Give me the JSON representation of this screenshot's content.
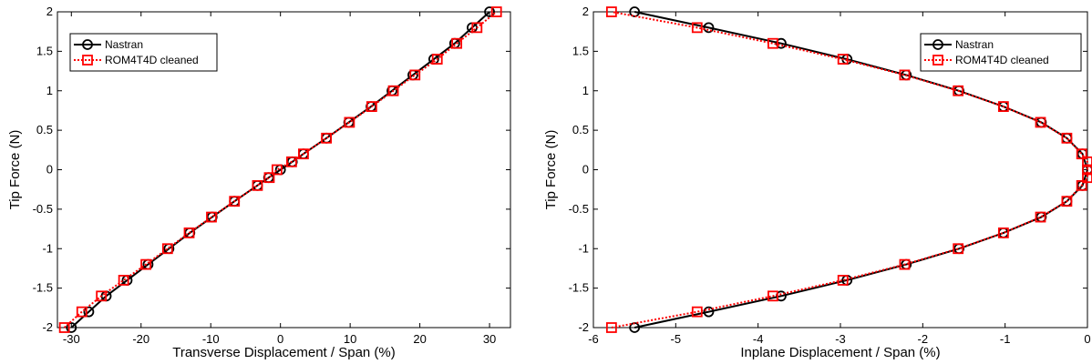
{
  "chart_data": [
    {
      "type": "line",
      "title": "",
      "xlabel": "Transverse Displacement / Span (%)",
      "ylabel": "Tip Force (N)",
      "xlim": [
        -32,
        33
      ],
      "ylim": [
        -2,
        2
      ],
      "xticks": [
        -30,
        -20,
        -10,
        0,
        10,
        20,
        30
      ],
      "yticks": [
        -2,
        -1.5,
        -1,
        -0.5,
        0,
        0.5,
        1,
        1.5,
        2
      ],
      "grid": false,
      "legend_position": "top-left",
      "series": [
        {
          "name": "Nastran",
          "color": "#000000",
          "style": "solid",
          "marker": "circle",
          "points": [
            [
              -30,
              -2
            ],
            [
              -27.5,
              -1.8
            ],
            [
              -25,
              -1.6
            ],
            [
              -22,
              -1.4
            ],
            [
              -19,
              -1.2
            ],
            [
              -16,
              -1
            ],
            [
              -13,
              -0.8
            ],
            [
              -9.8,
              -0.6
            ],
            [
              -6.6,
              -0.4
            ],
            [
              -3.3,
              -0.2
            ],
            [
              -1.7,
              -0.1
            ],
            [
              0,
              0
            ],
            [
              1.7,
              0.1
            ],
            [
              3.3,
              0.2
            ],
            [
              6.6,
              0.4
            ],
            [
              9.8,
              0.6
            ],
            [
              13,
              0.8
            ],
            [
              16,
              1
            ],
            [
              19,
              1.2
            ],
            [
              22,
              1.4
            ],
            [
              25,
              1.6
            ],
            [
              27.5,
              1.8
            ],
            [
              30,
              2
            ]
          ]
        },
        {
          "name": "ROM4T4D cleaned",
          "color": "#ff0000",
          "style": "dotted",
          "marker": "square",
          "points": [
            [
              -31,
              -2
            ],
            [
              -28.5,
              -1.8
            ],
            [
              -25.7,
              -1.6
            ],
            [
              -22.5,
              -1.4
            ],
            [
              -19.3,
              -1.2
            ],
            [
              -16.2,
              -1
            ],
            [
              -13.1,
              -0.8
            ],
            [
              -9.9,
              -0.6
            ],
            [
              -6.6,
              -0.4
            ],
            [
              -3.3,
              -0.2
            ],
            [
              -1.6,
              -0.1
            ],
            [
              -0.5,
              0
            ],
            [
              1.6,
              0.1
            ],
            [
              3.3,
              0.2
            ],
            [
              6.6,
              0.4
            ],
            [
              9.9,
              0.6
            ],
            [
              13.1,
              0.8
            ],
            [
              16.2,
              1
            ],
            [
              19.3,
              1.2
            ],
            [
              22.5,
              1.4
            ],
            [
              25.3,
              1.6
            ],
            [
              28.2,
              1.8
            ],
            [
              31,
              2
            ]
          ]
        }
      ]
    },
    {
      "type": "line",
      "title": "",
      "xlabel": "Inplane Displacement / Span (%)",
      "ylabel": "Tip Force (N)",
      "xlim": [
        -6,
        0
      ],
      "ylim": [
        -2,
        2
      ],
      "xticks": [
        -6,
        -5,
        -4,
        -3,
        -2,
        -1,
        0
      ],
      "yticks": [
        -2,
        -1.5,
        -1,
        -0.5,
        0,
        0.5,
        1,
        1.5,
        2
      ],
      "grid": false,
      "legend_position": "top-right",
      "series": [
        {
          "name": "Nastran",
          "color": "#000000",
          "style": "solid",
          "marker": "circle",
          "points": [
            [
              -5.5,
              -2
            ],
            [
              -4.6,
              -1.8
            ],
            [
              -3.72,
              -1.6
            ],
            [
              -2.92,
              -1.4
            ],
            [
              -2.2,
              -1.2
            ],
            [
              -1.56,
              -1
            ],
            [
              -1.02,
              -0.8
            ],
            [
              -0.56,
              -0.6
            ],
            [
              -0.25,
              -0.4
            ],
            [
              -0.06,
              -0.2
            ],
            [
              0,
              0
            ],
            [
              -0.06,
              0.2
            ],
            [
              -0.25,
              0.4
            ],
            [
              -0.56,
              0.6
            ],
            [
              -1.02,
              0.8
            ],
            [
              -1.56,
              1
            ],
            [
              -2.2,
              1.2
            ],
            [
              -2.92,
              1.4
            ],
            [
              -3.72,
              1.6
            ],
            [
              -4.6,
              1.8
            ],
            [
              -5.5,
              2
            ]
          ]
        },
        {
          "name": "ROM4T4D cleaned",
          "color": "#ff0000",
          "style": "dotted",
          "marker": "square",
          "points": [
            [
              -5.78,
              -2
            ],
            [
              -4.74,
              -1.8
            ],
            [
              -3.82,
              -1.6
            ],
            [
              -2.97,
              -1.4
            ],
            [
              -2.22,
              -1.2
            ],
            [
              -1.57,
              -1
            ],
            [
              -1.02,
              -0.8
            ],
            [
              -0.57,
              -0.6
            ],
            [
              -0.25,
              -0.4
            ],
            [
              -0.07,
              -0.2
            ],
            [
              0,
              -0.1
            ],
            [
              0,
              0
            ],
            [
              0,
              0.1
            ],
            [
              -0.07,
              0.2
            ],
            [
              -0.25,
              0.4
            ],
            [
              -0.57,
              0.6
            ],
            [
              -1.02,
              0.8
            ],
            [
              -1.57,
              1
            ],
            [
              -2.22,
              1.2
            ],
            [
              -2.97,
              1.4
            ],
            [
              -3.82,
              1.6
            ],
            [
              -4.74,
              1.8
            ],
            [
              -5.78,
              2
            ]
          ]
        }
      ]
    }
  ]
}
